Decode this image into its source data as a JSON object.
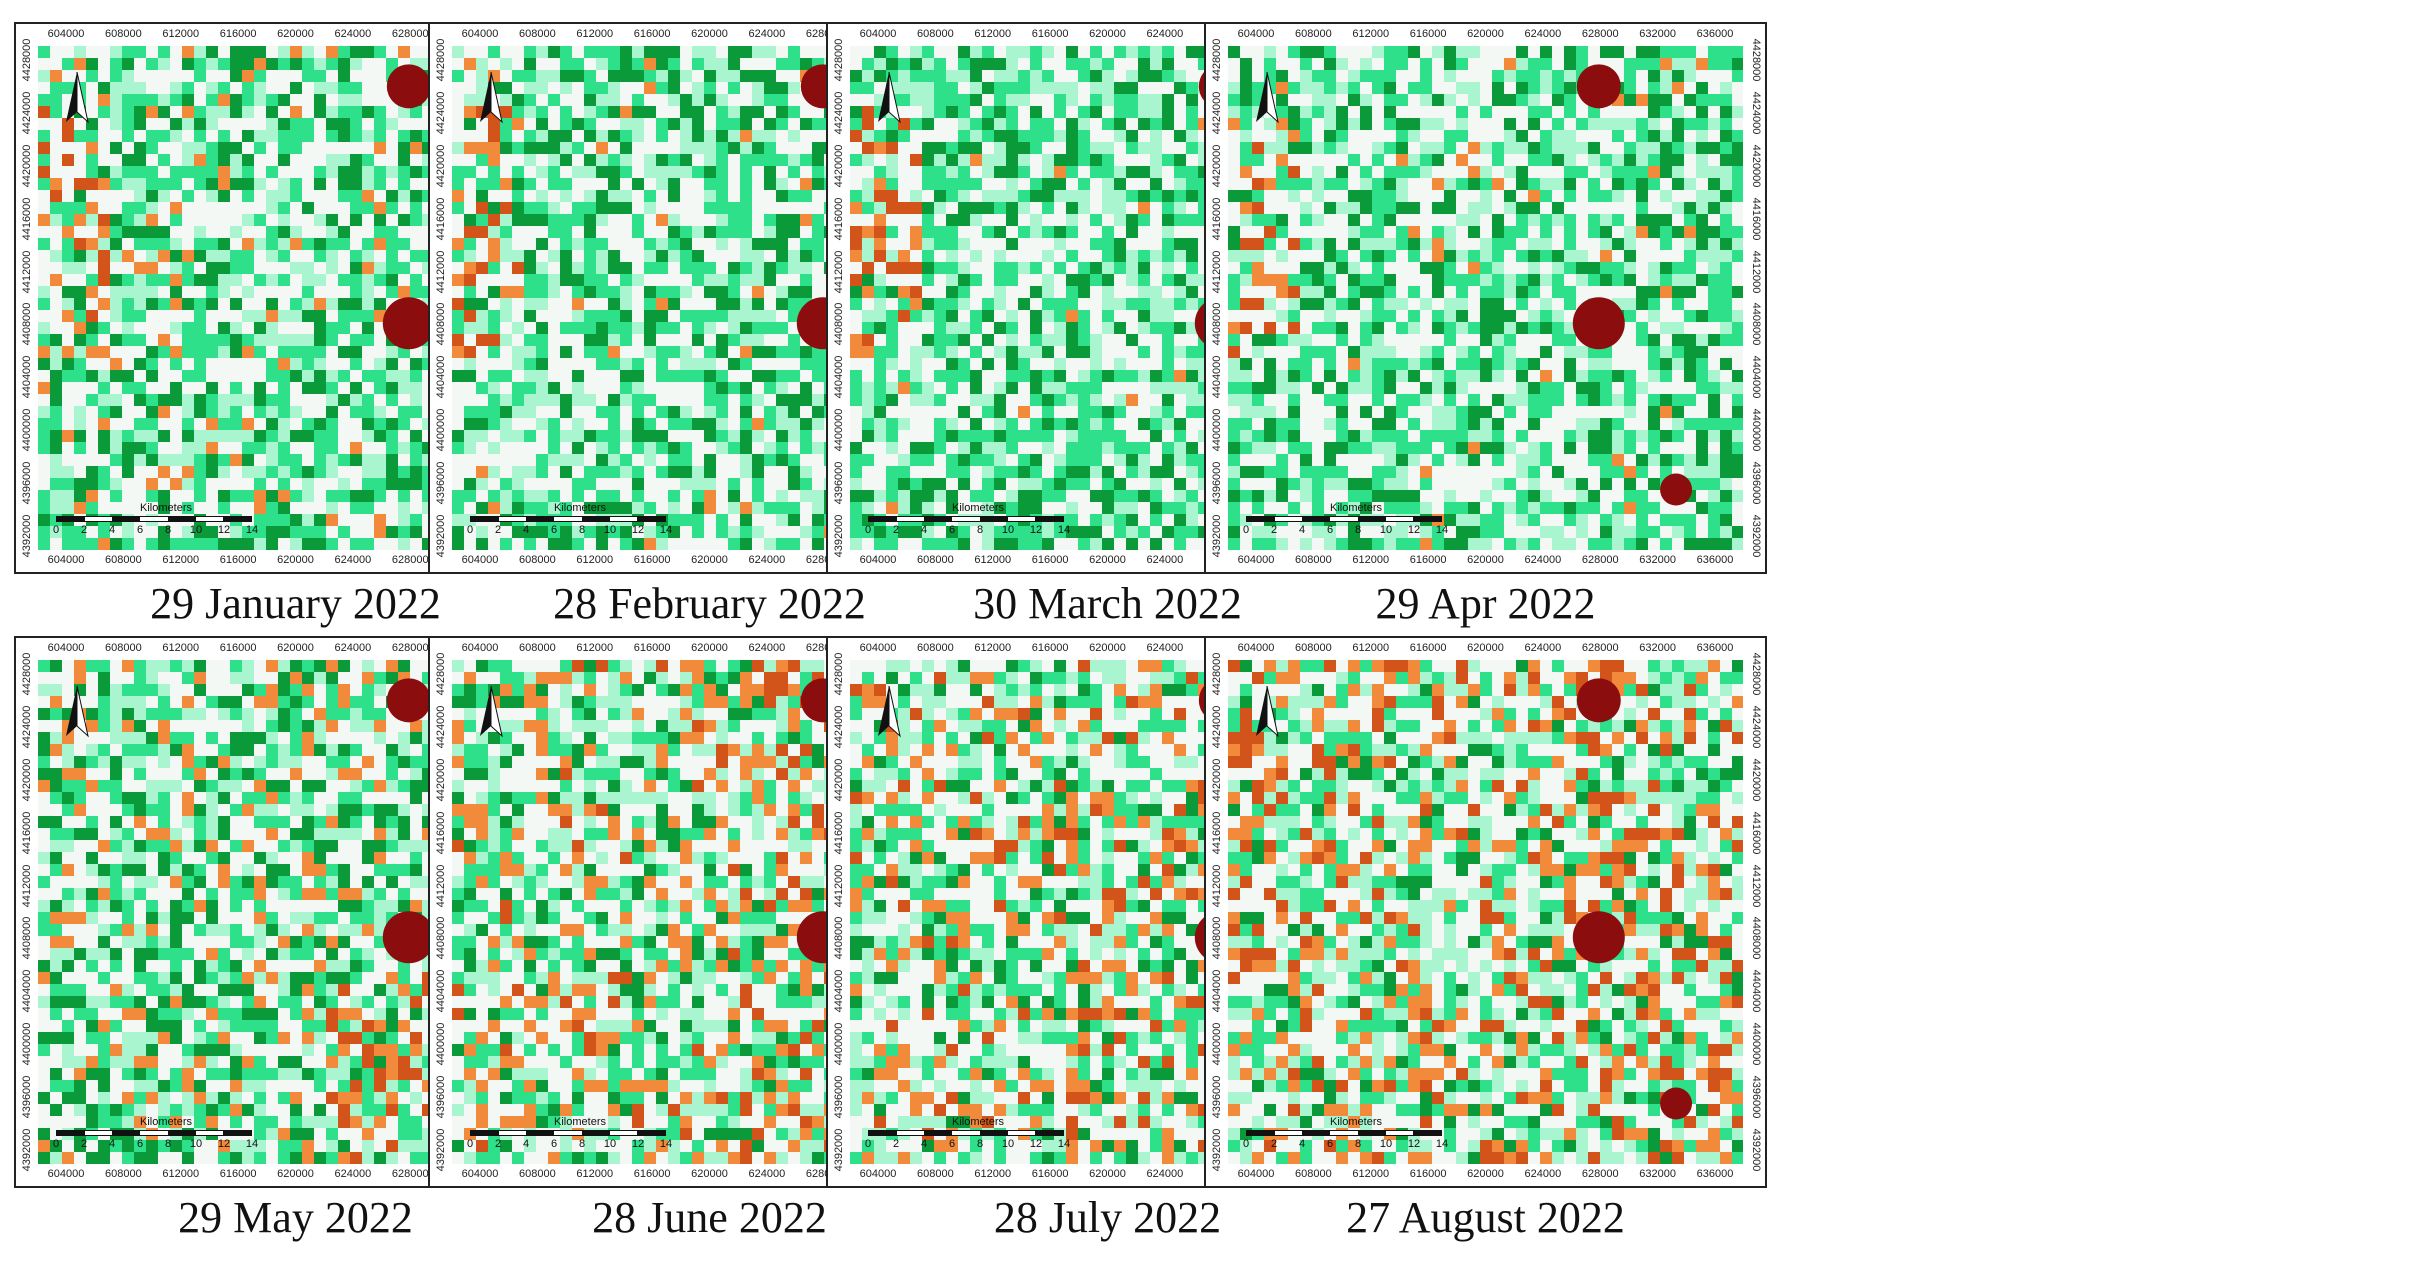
{
  "figure": {
    "panels": [
      {
        "caption": "29 January 2022",
        "variant": 0
      },
      {
        "caption": "28 February 2022",
        "variant": 1
      },
      {
        "caption": "30 March 2022",
        "variant": 2
      },
      {
        "caption": "29 Apr 2022",
        "variant": 3
      },
      {
        "caption": "29 May 2022",
        "variant": 4
      },
      {
        "caption": "28 June 2022",
        "variant": 5
      },
      {
        "caption": "28 July 2022",
        "variant": 6
      },
      {
        "caption": "27 August 2022",
        "variant": 7
      }
    ],
    "x_ticks": [
      "604000",
      "608000",
      "612000",
      "616000",
      "620000",
      "624000",
      "628000",
      "632000",
      "636000"
    ],
    "y_ticks": [
      "4428000",
      "4424000",
      "4420000",
      "4416000",
      "4412000",
      "4408000",
      "4404000",
      "4400000",
      "4396000",
      "4392000"
    ],
    "scale_bar": {
      "title": "Kilometers",
      "labels": [
        "0",
        "2",
        "4",
        "6",
        "8",
        "10",
        "12",
        "14"
      ]
    },
    "colors": {
      "dark_green": "#0a9a3a",
      "green": "#2ee08a",
      "light_green": "#a8f5cf",
      "pale": "#f3f8f4",
      "orange": "#f28a3c",
      "dark_orange": "#d2541a",
      "dark_red": "#8c0d0d"
    }
  }
}
